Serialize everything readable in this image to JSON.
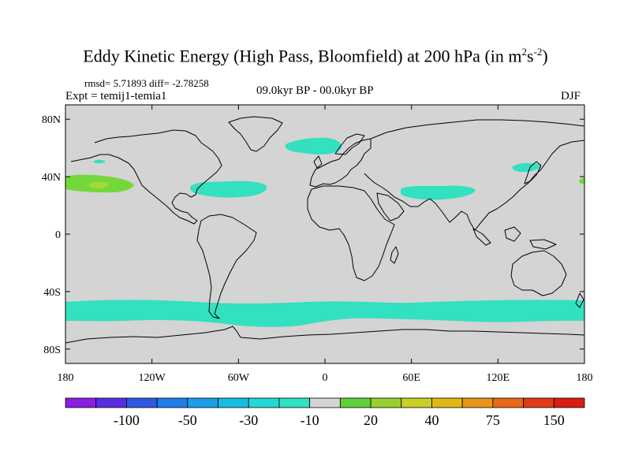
{
  "title": {
    "text": "Eddy Kinetic Energy (High Pass, Bloomfield) at 200 hPa (in m",
    "exp1": "2",
    "mid": "s",
    "exp2": "-2",
    "close": ")"
  },
  "stats": {
    "text": "rmsd= 5.71893 diff= -2.78258",
    "rmsd": 5.71893,
    "diff": -2.78258
  },
  "experiment_label": "Expt = temij1-temia1",
  "period_label": "09.0kyr BP - 00.0kyr BP",
  "season_label": "DJF",
  "map": {
    "projection": "cylindrical-equidistant",
    "background_color": "#d4d4d4",
    "lat_ticks": [
      {
        "value": 80,
        "label": "80N"
      },
      {
        "value": 40,
        "label": "40N"
      },
      {
        "value": 0,
        "label": "0"
      },
      {
        "value": -40,
        "label": "40S"
      },
      {
        "value": -80,
        "label": "80S"
      }
    ],
    "lon_ticks": [
      {
        "value": -180,
        "label": "180"
      },
      {
        "value": -120,
        "label": "120W"
      },
      {
        "value": -60,
        "label": "60W"
      },
      {
        "value": 0,
        "label": "0"
      },
      {
        "value": 60,
        "label": "60E"
      },
      {
        "value": 120,
        "label": "120E"
      },
      {
        "value": 180,
        "label": "180"
      }
    ],
    "anomaly_regions": [
      {
        "name": "southern-ocean-band",
        "color": "#33e0c0",
        "level": "-10"
      },
      {
        "name": "north-atlantic",
        "color": "#33e0c0",
        "level": "-10"
      },
      {
        "name": "western-atlantic",
        "color": "#33e0c0",
        "level": "-10"
      },
      {
        "name": "south-asia",
        "color": "#33e0c0",
        "level": "-10"
      },
      {
        "name": "japan",
        "color": "#33e0c0",
        "level": "-10"
      },
      {
        "name": "north-pacific-small",
        "color": "#33e0c0",
        "level": "-10"
      },
      {
        "name": "north-pacific-positive",
        "color": "#74d83a",
        "level": "20"
      },
      {
        "name": "north-pacific-core",
        "color": "#a8d838",
        "level": "30"
      },
      {
        "name": "east-edge-positive",
        "color": "#74d83a",
        "level": "20"
      }
    ]
  },
  "colorbar": {
    "colors": [
      "#8a1fe0",
      "#5a2ee0",
      "#2f5ae0",
      "#1f7fe8",
      "#1a9fe8",
      "#19bce0",
      "#26d8d4",
      "#33e0c0",
      "#d4d4d4",
      "#5fd03a",
      "#98d030",
      "#c8d028",
      "#e0b818",
      "#e89418",
      "#e86818",
      "#e03a18",
      "#d81e10"
    ],
    "labels": [
      {
        "text": "-100",
        "boundary": 2
      },
      {
        "text": "-50",
        "boundary": 4
      },
      {
        "text": "-30",
        "boundary": 6
      },
      {
        "text": "-10",
        "boundary": 8
      },
      {
        "text": "20",
        "boundary": 10
      },
      {
        "text": "40",
        "boundary": 12
      },
      {
        "text": "75",
        "boundary": 14
      },
      {
        "text": "150",
        "boundary": 16
      }
    ]
  }
}
